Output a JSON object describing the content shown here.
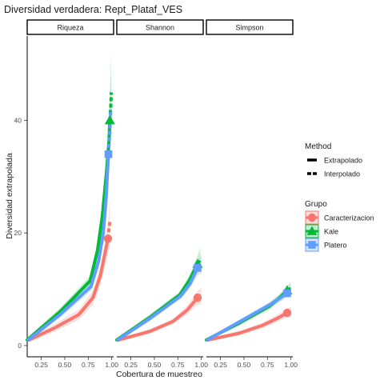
{
  "chart_data": {
    "type": "line",
    "title": "Diversidad verdadera: Rept_Plataf_VES",
    "xlabel": "Cobertura de muestreo",
    "ylabel": "Diversidad extrapolada",
    "xlim": [
      0.1,
      1.02
    ],
    "ylim": [
      -2,
      55
    ],
    "xticks": [
      "0.25",
      "0.50",
      "0.75",
      "1.00"
    ],
    "yticks": [
      "0",
      "20",
      "40"
    ],
    "grid": false,
    "legend_position": "right",
    "method_legend": {
      "title": "Method",
      "items": [
        {
          "label": "Extrapolado",
          "linetype": "solid"
        },
        {
          "label": "Interpolado",
          "linetype": "dashed"
        }
      ]
    },
    "group_legend": {
      "title": "Grupo",
      "items": [
        {
          "label": "Caracterizacion",
          "color": "#F8766D",
          "shape": "circle"
        },
        {
          "label": "Kale",
          "color": "#00BA38",
          "shape": "triangle"
        },
        {
          "label": "Platero",
          "color": "#619CFF",
          "shape": "square"
        }
      ]
    },
    "panels": [
      {
        "strip": "Riqueza",
        "series": [
          {
            "group": "Caracterizacion",
            "color": "#F8766D",
            "interp": [
              [
                0.12,
                1
              ],
              [
                0.4,
                3.2
              ],
              [
                0.65,
                5.5
              ],
              [
                0.8,
                8.5
              ],
              [
                0.88,
                12.5
              ],
              [
                0.93,
                16.5
              ],
              [
                0.96,
                19
              ]
            ],
            "extrap": [
              [
                0.96,
                19
              ],
              [
                0.97,
                20.5
              ],
              [
                0.98,
                22
              ]
            ],
            "band": [
              [
                0.12,
                0.6,
                1.4
              ],
              [
                0.4,
                2.5,
                3.9
              ],
              [
                0.65,
                4.6,
                6.4
              ],
              [
                0.8,
                7.2,
                9.8
              ],
              [
                0.88,
                10.8,
                14.2
              ],
              [
                0.93,
                14.2,
                18.8
              ],
              [
                0.96,
                16.2,
                21.8
              ],
              [
                0.98,
                17.5,
                26
              ]
            ],
            "observed": [
              0.96,
              19
            ]
          },
          {
            "group": "Kale",
            "color": "#00BA38",
            "interp": [
              [
                0.1,
                1
              ],
              [
                0.45,
                6
              ],
              [
                0.77,
                11.5
              ],
              [
                0.85,
                17
              ],
              [
                0.9,
                23
              ],
              [
                0.94,
                30
              ],
              [
                0.97,
                36
              ],
              [
                0.98,
                40
              ]
            ],
            "extrap": [
              [
                0.98,
                40
              ],
              [
                0.99,
                42.5
              ],
              [
                0.995,
                45
              ]
            ],
            "band": [
              [
                0.1,
                0.7,
                1.3
              ],
              [
                0.45,
                5.3,
                6.7
              ],
              [
                0.77,
                10.6,
                12.4
              ],
              [
                0.85,
                15.7,
                18.3
              ],
              [
                0.9,
                21,
                25
              ],
              [
                0.94,
                27,
                33
              ],
              [
                0.97,
                32,
                40
              ],
              [
                0.98,
                35.5,
                44.5
              ],
              [
                0.995,
                38,
                52
              ]
            ],
            "observed": [
              0.98,
              40
            ]
          },
          {
            "group": "Platero",
            "color": "#619CFF",
            "interp": [
              [
                0.11,
                1
              ],
              [
                0.45,
                5.5
              ],
              [
                0.78,
                10.5
              ],
              [
                0.86,
                15
              ],
              [
                0.91,
                20
              ],
              [
                0.94,
                26
              ],
              [
                0.965,
                34
              ]
            ],
            "extrap": [
              [
                0.965,
                34
              ],
              [
                0.98,
                38
              ],
              [
                0.99,
                42
              ]
            ],
            "band": [
              [
                0.11,
                0.7,
                1.3
              ],
              [
                0.45,
                4.9,
                6.1
              ],
              [
                0.78,
                9.7,
                11.3
              ],
              [
                0.86,
                13.8,
                16.2
              ],
              [
                0.91,
                18.2,
                21.8
              ],
              [
                0.94,
                23,
                29
              ],
              [
                0.965,
                29.5,
                38.5
              ],
              [
                0.99,
                35,
                48
              ]
            ],
            "observed": [
              0.965,
              34
            ]
          }
        ]
      },
      {
        "strip": "Shannon",
        "series": [
          {
            "group": "Caracterizacion",
            "color": "#F8766D",
            "interp": [
              [
                0.12,
                1
              ],
              [
                0.45,
                2.5
              ],
              [
                0.7,
                4.3
              ],
              [
                0.85,
                6.3
              ],
              [
                0.96,
                8.5
              ]
            ],
            "extrap": [
              [
                0.96,
                8.5
              ],
              [
                0.98,
                8.7
              ],
              [
                1.0,
                8.8
              ]
            ],
            "band": [
              [
                0.12,
                0.7,
                1.3
              ],
              [
                0.45,
                2.1,
                2.9
              ],
              [
                0.7,
                3.8,
                4.8
              ],
              [
                0.85,
                5.5,
                7.1
              ],
              [
                0.96,
                7.3,
                9.7
              ],
              [
                1.0,
                7.3,
                10.3
              ]
            ],
            "observed": [
              0.96,
              8.5
            ]
          },
          {
            "group": "Kale",
            "color": "#00BA38",
            "interp": [
              [
                0.1,
                1
              ],
              [
                0.45,
                5
              ],
              [
                0.77,
                9
              ],
              [
                0.87,
                11.5
              ],
              [
                0.96,
                14.5
              ]
            ],
            "extrap": [
              [
                0.96,
                14.5
              ],
              [
                0.98,
                15
              ],
              [
                0.99,
                15.5
              ]
            ],
            "band": [
              [
                0.1,
                0.7,
                1.3
              ],
              [
                0.45,
                4.5,
                5.5
              ],
              [
                0.77,
                8.4,
                9.6
              ],
              [
                0.87,
                10.6,
                12.4
              ],
              [
                0.96,
                13,
                16
              ],
              [
                0.99,
                13.3,
                17.5
              ]
            ],
            "observed": [
              0.96,
              14.5
            ]
          },
          {
            "group": "Platero",
            "color": "#619CFF",
            "interp": [
              [
                0.11,
                1
              ],
              [
                0.45,
                4.8
              ],
              [
                0.78,
                8.8
              ],
              [
                0.88,
                11
              ],
              [
                0.96,
                13.8
              ]
            ],
            "extrap": [
              [
                0.96,
                13.8
              ],
              [
                0.98,
                14.2
              ],
              [
                1.0,
                14.5
              ]
            ],
            "band": [
              [
                0.11,
                0.7,
                1.3
              ],
              [
                0.45,
                4.3,
                5.3
              ],
              [
                0.78,
                8.2,
                9.4
              ],
              [
                0.88,
                10.1,
                11.9
              ],
              [
                0.96,
                12.5,
                15.1
              ],
              [
                1.0,
                12.8,
                16.2
              ]
            ],
            "observed": [
              0.96,
              13.8
            ]
          }
        ]
      },
      {
        "strip": "Simpson",
        "series": [
          {
            "group": "Caracterizacion",
            "color": "#F8766D",
            "interp": [
              [
                0.12,
                1
              ],
              [
                0.45,
                2.2
              ],
              [
                0.7,
                3.6
              ],
              [
                0.85,
                4.8
              ],
              [
                0.96,
                5.8
              ]
            ],
            "extrap": [
              [
                0.96,
                5.8
              ],
              [
                0.98,
                5.9
              ],
              [
                1.0,
                6
              ]
            ],
            "band": [
              [
                0.12,
                0.7,
                1.3
              ],
              [
                0.45,
                1.8,
                2.6
              ],
              [
                0.7,
                3.1,
                4.1
              ],
              [
                0.85,
                4.2,
                5.4
              ],
              [
                0.96,
                5,
                6.6
              ],
              [
                1.0,
                5.1,
                6.9
              ]
            ],
            "observed": [
              0.96,
              5.8
            ]
          },
          {
            "group": "Kale",
            "color": "#00BA38",
            "interp": [
              [
                0.1,
                1
              ],
              [
                0.45,
                4
              ],
              [
                0.77,
                7
              ],
              [
                0.88,
                8.5
              ],
              [
                0.96,
                9.8
              ]
            ],
            "extrap": [
              [
                0.96,
                9.8
              ],
              [
                0.98,
                10
              ],
              [
                1.0,
                10.1
              ]
            ],
            "band": [
              [
                0.1,
                0.7,
                1.3
              ],
              [
                0.45,
                3.6,
                4.4
              ],
              [
                0.77,
                6.4,
                7.6
              ],
              [
                0.88,
                7.8,
                9.2
              ],
              [
                0.96,
                8.9,
                10.7
              ],
              [
                1.0,
                9,
                11.2
              ]
            ],
            "observed": [
              0.96,
              9.8
            ]
          },
          {
            "group": "Platero",
            "color": "#619CFF",
            "interp": [
              [
                0.11,
                1
              ],
              [
                0.45,
                4.2
              ],
              [
                0.78,
                7.3
              ],
              [
                0.88,
                8.4
              ],
              [
                0.96,
                9.3
              ]
            ],
            "extrap": [
              [
                0.96,
                9.3
              ],
              [
                0.98,
                9.5
              ],
              [
                1.0,
                9.6
              ]
            ],
            "band": [
              [
                0.11,
                0.7,
                1.3
              ],
              [
                0.45,
                3.8,
                4.6
              ],
              [
                0.78,
                6.8,
                7.8
              ],
              [
                0.88,
                7.8,
                9
              ],
              [
                0.96,
                8.5,
                10.1
              ],
              [
                1.0,
                8.6,
                10.6
              ]
            ],
            "observed": [
              0.96,
              9.3
            ]
          }
        ]
      }
    ]
  }
}
